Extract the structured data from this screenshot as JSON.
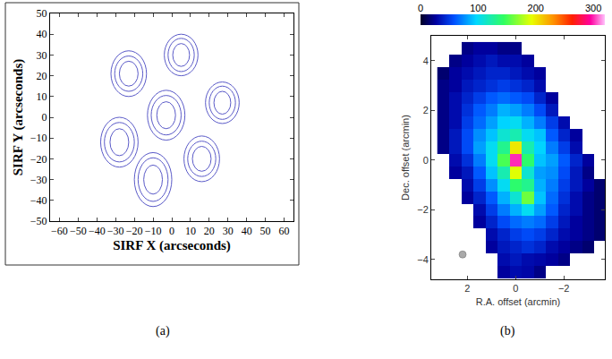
{
  "chart_data": [
    {
      "type": "contour",
      "panel_label": "(a)",
      "xlabel": "SIRF X (arcseconds)",
      "ylabel": "SIRF Y (arcseconds)",
      "xlim": [
        -65,
        65
      ],
      "ylim": [
        -50,
        50
      ],
      "xticks": [
        -60,
        -50,
        -40,
        -30,
        -20,
        -10,
        0,
        10,
        20,
        30,
        40,
        50,
        60
      ],
      "yticks": [
        -50,
        -40,
        -30,
        -20,
        -10,
        0,
        10,
        20,
        30,
        40,
        50
      ],
      "color": "#5a5ac8",
      "sources": [
        {
          "x": -23,
          "y": 21,
          "rings": [
            [
              9.5,
              11
            ],
            [
              7.5,
              8.5
            ],
            [
              5,
              6
            ]
          ]
        },
        {
          "x": 5,
          "y": 30,
          "rings": [
            [
              9,
              10
            ],
            [
              7,
              8
            ],
            [
              4.5,
              5.5
            ]
          ]
        },
        {
          "x": 27,
          "y": 7,
          "rings": [
            [
              9,
              10
            ],
            [
              7,
              8
            ],
            [
              4.5,
              5.5
            ]
          ]
        },
        {
          "x": -3,
          "y": 1,
          "rings": [
            [
              10,
              12
            ],
            [
              8,
              9.5
            ],
            [
              5,
              6.5
            ]
          ]
        },
        {
          "x": -28,
          "y": -12,
          "rings": [
            [
              10,
              12
            ],
            [
              8,
              9.5
            ],
            [
              5,
              6.5
            ]
          ]
        },
        {
          "x": -10,
          "y": -30,
          "rings": [
            [
              10,
              13
            ],
            [
              8,
              10.5
            ],
            [
              5,
              7
            ]
          ]
        },
        {
          "x": 16,
          "y": -20,
          "rings": [
            [
              9.5,
              11
            ],
            [
              7.5,
              8.5
            ],
            [
              5,
              6
            ]
          ]
        }
      ]
    },
    {
      "type": "heatmap",
      "panel_label": "(b)",
      "xlabel": "R.A. offset (arcmin)",
      "ylabel": "Dec. offset (arcmin)",
      "xlim": [
        3.5,
        -3.7
      ],
      "ylim": [
        -4.8,
        5.0
      ],
      "xticks": [
        2,
        0,
        -2
      ],
      "yticks": [
        -4,
        -2,
        0,
        2,
        4
      ],
      "x": [
        3.0,
        2.5,
        2.0,
        1.5,
        1.0,
        0.5,
        0.0,
        -0.5,
        -1.0,
        -1.5,
        -2.0,
        -2.5,
        -3.0,
        -3.5
      ],
      "y": [
        -4.5,
        -4.0,
        -3.5,
        -3.0,
        -2.5,
        -2.0,
        -1.5,
        -1.0,
        -0.5,
        0.0,
        0.5,
        1.0,
        1.5,
        2.0,
        2.5,
        3.0,
        3.5,
        4.0,
        4.5
      ],
      "z": [
        [
          null,
          null,
          null,
          null,
          null,
          25,
          30,
          28,
          20,
          null,
          null,
          null,
          null,
          null
        ],
        [
          null,
          null,
          null,
          null,
          null,
          30,
          35,
          30,
          28,
          25,
          20,
          null,
          null,
          null
        ],
        [
          null,
          null,
          null,
          null,
          25,
          35,
          40,
          45,
          40,
          30,
          25,
          20,
          15,
          null
        ],
        [
          null,
          null,
          null,
          null,
          30,
          40,
          50,
          55,
          50,
          40,
          30,
          25,
          20,
          15
        ],
        [
          null,
          null,
          null,
          25,
          40,
          55,
          65,
          70,
          65,
          50,
          35,
          25,
          20,
          15
        ],
        [
          null,
          null,
          null,
          30,
          50,
          70,
          85,
          100,
          80,
          60,
          40,
          30,
          20,
          15
        ],
        [
          null,
          null,
          25,
          40,
          60,
          85,
          110,
          160,
          90,
          65,
          45,
          30,
          20,
          15
        ],
        [
          null,
          null,
          30,
          50,
          75,
          100,
          140,
          130,
          85,
          70,
          50,
          35,
          25,
          15
        ],
        [
          null,
          25,
          35,
          60,
          90,
          120,
          190,
          110,
          80,
          75,
          55,
          35,
          20,
          null
        ],
        [
          null,
          30,
          45,
          70,
          100,
          150,
          300,
          140,
          90,
          80,
          60,
          40,
          25,
          null
        ],
        [
          20,
          35,
          55,
          80,
          100,
          130,
          200,
          120,
          95,
          70,
          50,
          30,
          null,
          null
        ],
        [
          20,
          35,
          55,
          75,
          90,
          110,
          120,
          100,
          90,
          60,
          40,
          25,
          null,
          null
        ],
        [
          20,
          30,
          50,
          65,
          80,
          95,
          100,
          85,
          70,
          50,
          30,
          null,
          null,
          null
        ],
        [
          20,
          30,
          45,
          60,
          70,
          85,
          80,
          70,
          55,
          35,
          null,
          null,
          null,
          null
        ],
        [
          20,
          30,
          40,
          50,
          60,
          65,
          60,
          55,
          40,
          25,
          null,
          null,
          null,
          null
        ],
        [
          20,
          25,
          35,
          40,
          45,
          50,
          45,
          40,
          30,
          null,
          null,
          null,
          null,
          null
        ],
        [
          15,
          25,
          30,
          35,
          40,
          40,
          35,
          30,
          25,
          null,
          null,
          null,
          null,
          null
        ],
        [
          null,
          20,
          25,
          30,
          35,
          30,
          30,
          25,
          null,
          null,
          null,
          null,
          null,
          null
        ],
        [
          null,
          null,
          20,
          25,
          25,
          20,
          20,
          null,
          null,
          null,
          null,
          null,
          null,
          null
        ]
      ],
      "zlim": [
        0,
        320
      ],
      "zticks": [
        0,
        100,
        200,
        300
      ],
      "beam": {
        "x": 2.2,
        "y": -3.8,
        "color": "#aaaaaa"
      }
    }
  ]
}
